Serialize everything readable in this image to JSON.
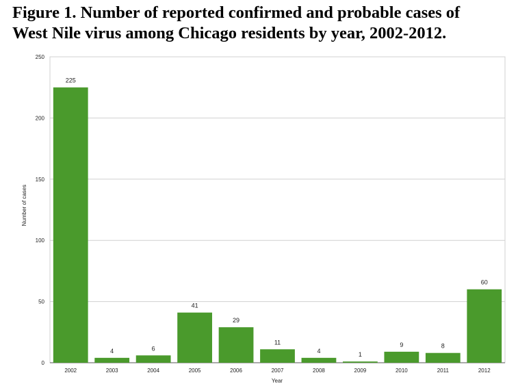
{
  "title_line1": "Figure 1. Number of reported confirmed and probable cases of",
  "title_line2": "West Nile virus among Chicago residents by year, 2002-2012.",
  "chart_data": {
    "type": "bar",
    "categories": [
      "2002",
      "2003",
      "2004",
      "2005",
      "2006",
      "2007",
      "2008",
      "2009",
      "2010",
      "2011",
      "2012"
    ],
    "values": [
      225,
      4,
      6,
      41,
      29,
      11,
      4,
      1,
      9,
      8,
      60
    ],
    "xlabel": "Year",
    "ylabel": "Number of cases",
    "ylim": [
      0,
      250
    ],
    "yticks": [
      0,
      50,
      100,
      150,
      200,
      250
    ],
    "grid": true,
    "bar_color": "#4a9a2c"
  }
}
